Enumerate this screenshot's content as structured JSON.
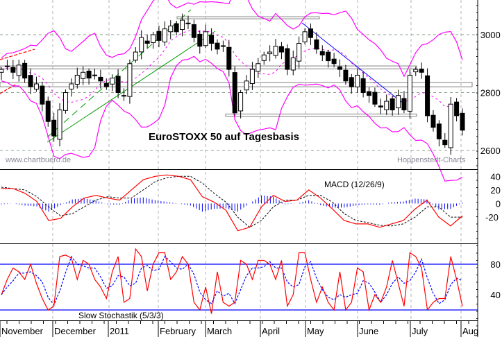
{
  "chart_data": {
    "type": "candlestick",
    "title": "EuroSTOXX 50 auf Tagesbasis",
    "watermark_left": "www.chartbuero.de",
    "watermark_right": "Hoppenstedt-Charts",
    "x_labels": [
      "November",
      "December",
      "2011",
      "February",
      "March",
      "April",
      "May",
      "June",
      "July",
      "Aug"
    ],
    "price_panel": {
      "ylim": [
        2520,
        3120
      ],
      "ticks": [
        "3000",
        "2800",
        "2600"
      ],
      "tick_values": [
        3000,
        2800,
        2600
      ],
      "closes": [
        2880,
        2890,
        2870,
        2895,
        2850,
        2820,
        2830,
        2760,
        2700,
        2650,
        2740,
        2800,
        2830,
        2860,
        2870,
        2850,
        2860,
        2840,
        2820,
        2850,
        2800,
        2790,
        2900,
        2940,
        2990,
        2970,
        3000,
        2980,
        3020,
        3030,
        3010,
        3050,
        3040,
        2990,
        2960,
        3010,
        2970,
        2950,
        2960,
        2880,
        2730,
        2800,
        2840,
        2880,
        2900,
        2930,
        2940,
        2960,
        2940,
        2880,
        2920,
        2970,
        3010,
        2990,
        2950,
        2930,
        2910,
        2900,
        2880,
        2840,
        2820,
        2860,
        2800,
        2790,
        2760,
        2750,
        2770,
        2740,
        2790,
        2740,
        2860,
        2880,
        2870,
        2720,
        2680,
        2640,
        2620,
        2760,
        2720,
        2670
      ],
      "bollinger": {
        "period": 8,
        "k": 2.2
      },
      "support_zones": [
        [
          3055,
          3062
        ],
        [
          2882,
          2892
        ],
        [
          2820,
          2835
        ],
        [
          2718,
          2726
        ]
      ],
      "colors": {
        "band": "#ff00ff",
        "up": "#ffffff",
        "down": "#000000",
        "zone": "#808080"
      }
    },
    "macd_panel": {
      "label": "MACD (12/26/9)",
      "ylim": [
        -58,
        49
      ],
      "ticks": [
        "40",
        "20",
        "0",
        "-20"
      ],
      "tick_values": [
        40,
        20,
        0,
        -20
      ],
      "macd": [
        22,
        22,
        15,
        3,
        -25,
        -22,
        -5,
        8,
        12,
        8,
        5,
        20,
        35,
        40,
        42,
        40,
        35,
        10,
        2,
        -10,
        -40,
        -35,
        -5,
        12,
        3,
        5,
        20,
        8,
        -8,
        -25,
        -30,
        -30,
        -35,
        -30,
        -25,
        -8,
        5,
        -20,
        -33,
        -18
      ],
      "signal": [
        24,
        22,
        20,
        10,
        -5,
        -18,
        -15,
        -5,
        5,
        10,
        8,
        8,
        20,
        32,
        38,
        40,
        40,
        30,
        15,
        2,
        -20,
        -35,
        -25,
        -5,
        5,
        5,
        12,
        12,
        2,
        -15,
        -25,
        -28,
        -32,
        -33,
        -30,
        -20,
        -5,
        -5,
        -20,
        -20
      ],
      "colors": {
        "macd": "#ff0000",
        "signal": "#000000",
        "histogram": "#0000ff"
      }
    },
    "stoch_panel": {
      "label": "Slow Stochastik (5/3/3)",
      "ticks": [
        "80",
        "40"
      ],
      "tick_values": [
        80,
        40
      ],
      "levels": [
        80,
        20
      ],
      "k": [
        40,
        60,
        75,
        70,
        60,
        80,
        55,
        35,
        20,
        25,
        90,
        92,
        88,
        60,
        85,
        80,
        60,
        50,
        35,
        70,
        90,
        30,
        35,
        100,
        90,
        45,
        80,
        95,
        95,
        60,
        70,
        90,
        80,
        30,
        20,
        50,
        15,
        70,
        30,
        25,
        30,
        85,
        80,
        60,
        85,
        85,
        80,
        60,
        85,
        25,
        40,
        95,
        95,
        60,
        30,
        50,
        30,
        20,
        70,
        20,
        30,
        75,
        70,
        20,
        40,
        30,
        50,
        85,
        55,
        25,
        95,
        90,
        75,
        20,
        30,
        35,
        35,
        90,
        60,
        25
      ],
      "colors": {
        "k": "#ff0000",
        "d": "#0000ff",
        "levels": "#0000ff"
      }
    }
  }
}
